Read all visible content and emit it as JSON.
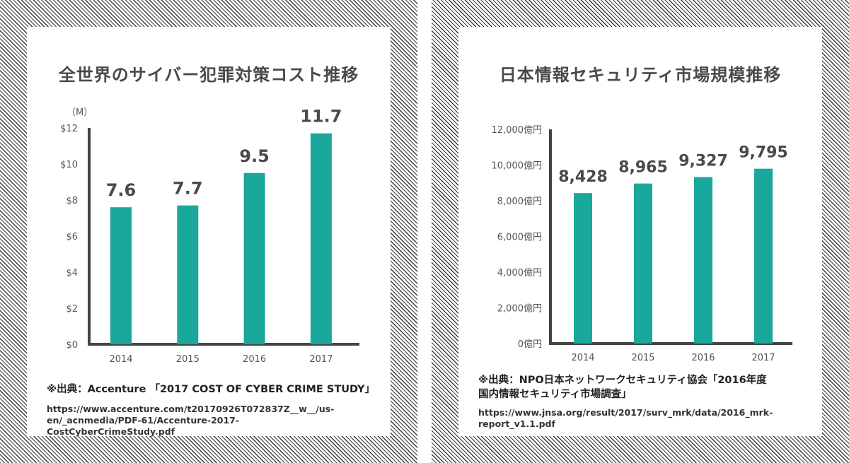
{
  "colors": {
    "bar": "#1aa79c",
    "axis": "#444444",
    "tick_text": "#555555",
    "value_text": "#4a4a4a"
  },
  "left": {
    "title": "全世界のサイバー犯罪対策コスト推移",
    "source_title": "※出典：Accenture 「2017 COST OF CYBER CRIME STUDY」",
    "source_url_line1": "https://www.accenture.com/t20170926T072837Z__w__/us-",
    "source_url_line2": "en/_acnmedia/PDF-61/Accenture-2017-CostCyberCrimeStudy.pdf"
  },
  "right": {
    "title": "日本情報セキュリティ市場規模推移",
    "source_title_line1": "※出典：NPO日本ネットワークセキュリティ協会「2016年度",
    "source_title_line2": "国内情報セキュリティ市場調査」",
    "source_url_line1": "https://www.jnsa.org/result/2017/surv_mrk/data/2016_mrk-",
    "source_url_line2": "report_v1.1.pdf"
  },
  "chart_data": [
    {
      "type": "bar",
      "title": "全世界のサイバー犯罪対策コスト推移",
      "unit_label": "（M）",
      "categories": [
        "2014",
        "2015",
        "2016",
        "2017"
      ],
      "values": [
        7.6,
        7.7,
        9.5,
        11.7
      ],
      "value_labels": [
        "7.6",
        "7.7",
        "9.5",
        "11.7"
      ],
      "ylim": [
        0,
        12
      ],
      "yticks": [
        0,
        2,
        4,
        6,
        8,
        10,
        12
      ],
      "ytick_labels": [
        "$0",
        "$2",
        "$4",
        "$6",
        "$8",
        "$10",
        "$12"
      ],
      "grid": false
    },
    {
      "type": "bar",
      "title": "日本情報セキュリティ市場規模推移",
      "categories": [
        "2014",
        "2015",
        "2016",
        "2017"
      ],
      "values": [
        8428,
        8965,
        9327,
        9795
      ],
      "value_labels": [
        "8,428",
        "8,965",
        "9,327",
        "9,795"
      ],
      "ylim": [
        0,
        12000
      ],
      "yticks": [
        0,
        2000,
        4000,
        6000,
        8000,
        10000,
        12000
      ],
      "ytick_labels": [
        "0億円",
        "2,000億円",
        "4,000億円",
        "6,000億円",
        "8,000億円",
        "10,000億円",
        "12,000億円"
      ],
      "grid": false
    }
  ]
}
